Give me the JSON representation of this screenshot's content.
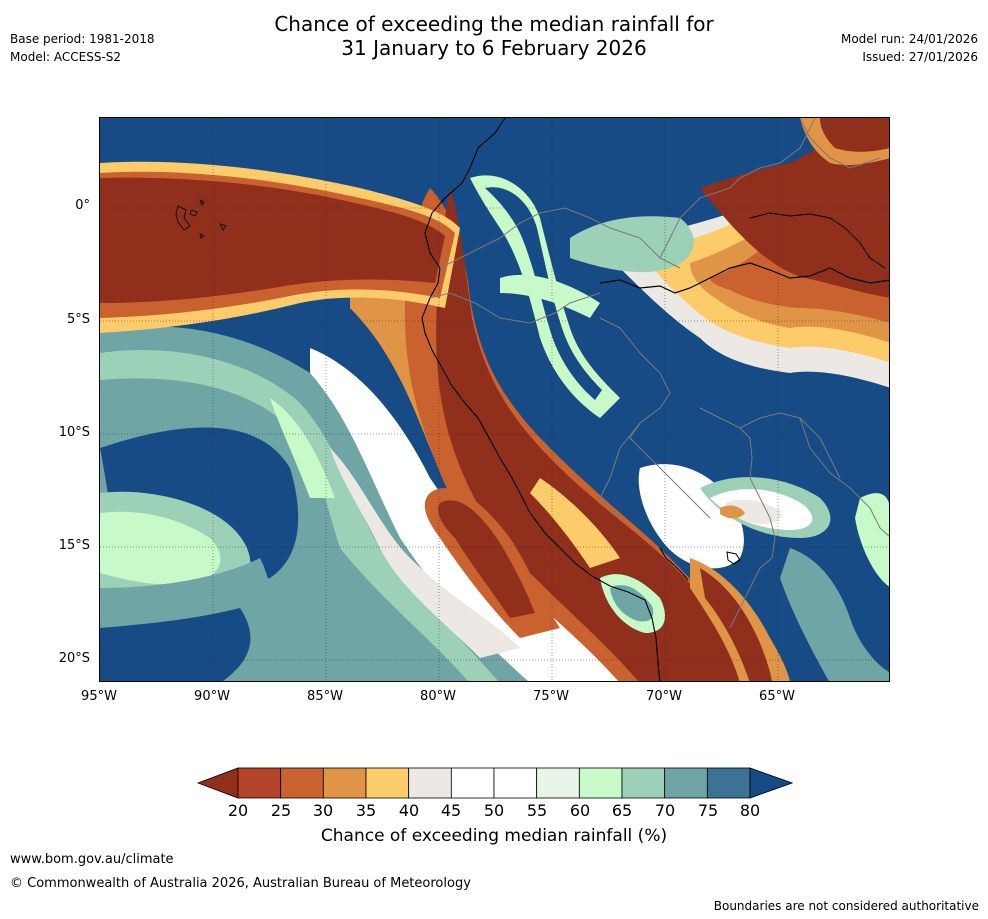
{
  "header": {
    "title_line1": "Chance of exceeding the median rainfall for",
    "title_line2": "31 January to 6 February 2026",
    "base_period": "Base period: 1981-2018",
    "model": "Model: ACCESS-S2",
    "model_run": "Model run: 24/01/2026",
    "issued": "Issued: 27/01/2026"
  },
  "map": {
    "lat_labels": [
      "0°",
      "5°S",
      "10°S",
      "15°S",
      "20°S"
    ],
    "lon_labels": [
      "95°W",
      "90°W",
      "85°W",
      "80°W",
      "75°W",
      "70°W",
      "65°W"
    ],
    "colors": {
      "c20": "#8f2f1c",
      "c25": "#b4452a",
      "c30": "#c9622f",
      "c35": "#e09446",
      "c40": "#fdcc6a",
      "c45": "#ece9e4",
      "c50": "#ffffff",
      "c55": "#ffffff",
      "c60": "#e8f4e8",
      "c65": "#c8f9c8",
      "c70": "#9dd1b7",
      "c75": "#6fa5a5",
      "c80": "#3c7294",
      "c85": "#164b85"
    }
  },
  "colorbar": {
    "ticks": [
      "20",
      "25",
      "30",
      "35",
      "40",
      "45",
      "50",
      "55",
      "60",
      "65",
      "70",
      "75",
      "80"
    ],
    "colors": [
      "#8f2f1c",
      "#b4452a",
      "#c9622f",
      "#e09446",
      "#fdcc6a",
      "#ece9e4",
      "#ffffff",
      "#ffffff",
      "#e8f4e8",
      "#c8f9c8",
      "#9dd1b7",
      "#6fa5a5",
      "#3c7294",
      "#164b85"
    ],
    "label": "Chance of exceeding median rainfall (%)"
  },
  "footer": {
    "url": "www.bom.gov.au/climate",
    "copyright": "© Commonwealth of Australia 2026, Australian Bureau of Meteorology",
    "disclaimer": "Boundaries are not considered authoritative"
  }
}
